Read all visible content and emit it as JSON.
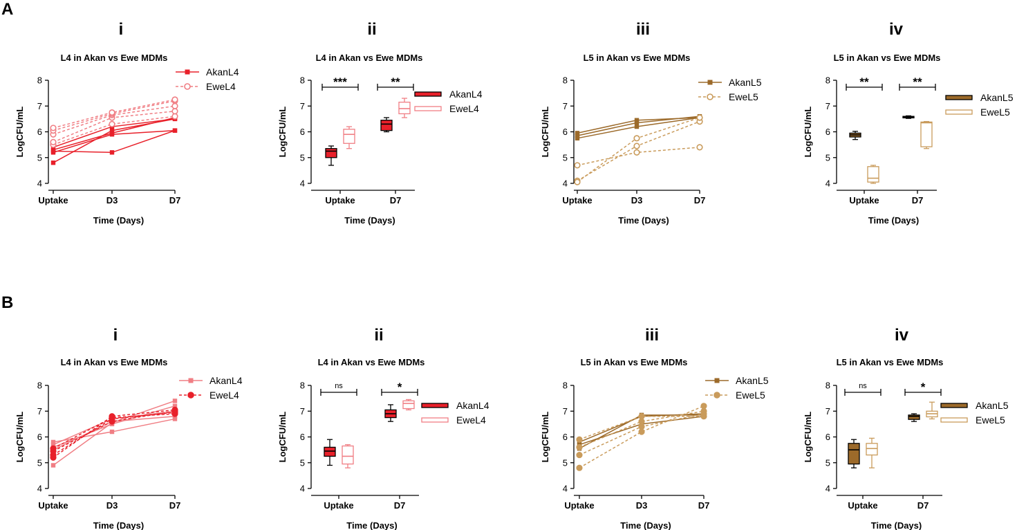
{
  "panel_labels": [
    "A",
    "B"
  ],
  "colors": {
    "L4": "#e8202a",
    "L4_light": "#f07e84",
    "L5": "#9c6a2a",
    "L5_light": "#c99b5b"
  },
  "chart_data": [
    {
      "id": "A-i",
      "panel": "A",
      "sub_label": "i",
      "type": "line",
      "title": "L4 in Akan vs Ewe MDMs",
      "xlabel": "Time (Days)",
      "ylabel": "LogCFU/mL",
      "categories": [
        "Uptake",
        "D3",
        "D7"
      ],
      "ylim": [
        4,
        8
      ],
      "yticks": [
        4,
        5,
        6,
        7,
        8
      ],
      "legend": [
        "AkanL4",
        "EweL4"
      ],
      "legend_position": "top-right",
      "series": [
        {
          "name": "AkanL4",
          "values": [
            4.8,
            6.05,
            6.5
          ]
        },
        {
          "name": "AkanL4",
          "values": [
            5.25,
            5.2,
            6.05
          ]
        },
        {
          "name": "AkanL4",
          "values": [
            5.2,
            5.9,
            6.05
          ]
        },
        {
          "name": "AkanL4",
          "values": [
            5.3,
            5.95,
            6.55
          ]
        },
        {
          "name": "AkanL4",
          "values": [
            5.4,
            6.2,
            6.5
          ]
        },
        {
          "name": "EweL4",
          "values": [
            5.5,
            6.3,
            6.6
          ]
        },
        {
          "name": "EweL4",
          "values": [
            5.6,
            6.55,
            6.8
          ]
        },
        {
          "name": "EweL4",
          "values": [
            5.9,
            6.65,
            7.0
          ]
        },
        {
          "name": "EweL4",
          "values": [
            6.05,
            6.7,
            7.2
          ]
        },
        {
          "name": "EweL4",
          "values": [
            6.15,
            6.75,
            7.25
          ]
        }
      ]
    },
    {
      "id": "A-ii",
      "panel": "A",
      "sub_label": "ii",
      "type": "box",
      "title": "L4 in Akan vs Ewe MDMs",
      "xlabel": "Time (Days)",
      "ylabel": "LogCFU/mL",
      "categories": [
        "Uptake",
        "D7"
      ],
      "ylim": [
        4,
        8
      ],
      "yticks": [
        4,
        5,
        6,
        7,
        8
      ],
      "legend": [
        "AkanL4",
        "EweL4"
      ],
      "legend_position": "right",
      "series": [
        {
          "name": "AkanL4",
          "fill": true,
          "boxes": [
            {
              "min": 4.7,
              "q1": 5.0,
              "median": 5.25,
              "q3": 5.35,
              "max": 5.45
            },
            {
              "min": 6.0,
              "q1": 6.05,
              "median": 6.3,
              "q3": 6.45,
              "max": 6.55
            }
          ]
        },
        {
          "name": "EweL4",
          "fill": false,
          "boxes": [
            {
              "min": 5.35,
              "q1": 5.55,
              "median": 5.9,
              "q3": 6.1,
              "max": 6.2
            },
            {
              "min": 6.55,
              "q1": 6.7,
              "median": 6.9,
              "q3": 7.15,
              "max": 7.3
            }
          ]
        }
      ],
      "significance": [
        "***",
        "**"
      ]
    },
    {
      "id": "A-iii",
      "panel": "A",
      "sub_label": "iii",
      "type": "line",
      "title": "L5 in Akan vs Ewe MDMs",
      "xlabel": "Time (Days)",
      "ylabel": "LogCFU/mL",
      "categories": [
        "Uptake",
        "D3",
        "D7"
      ],
      "ylim": [
        4,
        8
      ],
      "yticks": [
        4,
        5,
        6,
        7,
        8
      ],
      "legend": [
        "AkanL5",
        "EweL5"
      ],
      "legend_position": "top-right",
      "series": [
        {
          "name": "AkanL5",
          "values": [
            5.75,
            6.2,
            6.55
          ]
        },
        {
          "name": "AkanL5",
          "values": [
            5.85,
            6.35,
            6.6
          ]
        },
        {
          "name": "AkanL5",
          "values": [
            5.95,
            6.45,
            6.55
          ]
        },
        {
          "name": "EweL5",
          "values": [
            4.7,
            5.2,
            5.4
          ]
        },
        {
          "name": "EweL5",
          "values": [
            4.1,
            5.45,
            6.4
          ]
        },
        {
          "name": "EweL5",
          "values": [
            4.05,
            5.75,
            6.55
          ]
        }
      ]
    },
    {
      "id": "A-iv",
      "panel": "A",
      "sub_label": "iv",
      "type": "box",
      "title": "L5 in Akan vs Ewe MDMs",
      "xlabel": "Time (Days)",
      "ylabel": "LogCFU/mL",
      "categories": [
        "Uptake",
        "D7"
      ],
      "ylim": [
        4,
        8
      ],
      "yticks": [
        4,
        5,
        6,
        7,
        8
      ],
      "legend": [
        "AkanL5",
        "EweL5"
      ],
      "legend_position": "right",
      "series": [
        {
          "name": "AkanL5",
          "fill": true,
          "boxes": [
            {
              "min": 5.7,
              "q1": 5.8,
              "median": 5.88,
              "q3": 5.95,
              "max": 6.02
            },
            {
              "min": 6.52,
              "q1": 6.54,
              "median": 6.57,
              "q3": 6.6,
              "max": 6.62
            }
          ]
        },
        {
          "name": "EweL5",
          "fill": false,
          "boxes": [
            {
              "min": 4.0,
              "q1": 4.05,
              "median": 4.2,
              "q3": 4.65,
              "max": 4.7
            },
            {
              "min": 5.35,
              "q1": 5.42,
              "median": 6.35,
              "q3": 6.38,
              "max": 6.4
            }
          ]
        }
      ],
      "significance": [
        "**",
        "**"
      ]
    },
    {
      "id": "B-i",
      "panel": "B",
      "sub_label": "i",
      "type": "line",
      "title": "L4 in Akan vs Ewe MDMs",
      "xlabel": "Time (Days)",
      "ylabel": "LogCFU/mL",
      "categories": [
        "Uptake",
        "D3",
        "D7"
      ],
      "ylim": [
        4,
        8
      ],
      "yticks": [
        4,
        5,
        6,
        7,
        8
      ],
      "legend": [
        "AkanL4",
        "EweL4"
      ],
      "legend_position": "top-right",
      "series": [
        {
          "name": "AkanL4",
          "values": [
            4.9,
            6.55,
            7.4
          ]
        },
        {
          "name": "AkanL4",
          "values": [
            5.8,
            6.2,
            6.7
          ]
        },
        {
          "name": "AkanL4",
          "values": [
            5.6,
            6.5,
            7.2
          ]
        },
        {
          "name": "AkanL4",
          "values": [
            5.5,
            6.6,
            6.8
          ]
        },
        {
          "name": "AkanL4",
          "values": [
            5.7,
            6.7,
            7.0
          ]
        },
        {
          "name": "EweL4",
          "values": [
            5.2,
            6.8,
            7.05
          ]
        },
        {
          "name": "EweL4",
          "values": [
            5.3,
            6.7,
            6.95
          ]
        },
        {
          "name": "EweL4",
          "values": [
            5.45,
            6.6,
            7.0
          ]
        },
        {
          "name": "EweL4",
          "values": [
            5.55,
            6.75,
            6.9
          ]
        }
      ]
    },
    {
      "id": "B-ii",
      "panel": "B",
      "sub_label": "ii",
      "type": "box",
      "title": "L4 in Akan vs Ewe MDMs",
      "xlabel": "Time (Days)",
      "ylabel": "LogCFU/mL",
      "categories": [
        "Uptake",
        "D7"
      ],
      "ylim": [
        4,
        8
      ],
      "yticks": [
        4,
        5,
        6,
        7,
        8
      ],
      "legend": [
        "AkanL4",
        "EweL4"
      ],
      "legend_position": "right",
      "series": [
        {
          "name": "AkanL4",
          "fill": true,
          "boxes": [
            {
              "min": 4.9,
              "q1": 5.25,
              "median": 5.45,
              "q3": 5.6,
              "max": 5.9
            },
            {
              "min": 6.6,
              "q1": 6.75,
              "median": 6.9,
              "q3": 7.05,
              "max": 7.25
            }
          ]
        },
        {
          "name": "EweL4",
          "fill": false,
          "boxes": [
            {
              "min": 4.8,
              "q1": 4.95,
              "median": 5.25,
              "q3": 5.65,
              "max": 5.7
            },
            {
              "min": 7.05,
              "q1": 7.1,
              "median": 7.3,
              "q3": 7.4,
              "max": 7.45
            }
          ]
        }
      ],
      "significance": [
        "ns",
        "*"
      ]
    },
    {
      "id": "B-iii",
      "panel": "B",
      "sub_label": "iii",
      "type": "line",
      "title": "L5 in Akan vs Ewe MDMs",
      "xlabel": "Time (Days)",
      "ylabel": "LogCFU/mL",
      "categories": [
        "Uptake",
        "D3",
        "D7"
      ],
      "ylim": [
        4,
        8
      ],
      "yticks": [
        4,
        5,
        6,
        7,
        8
      ],
      "legend": [
        "AkanL5",
        "EweL5"
      ],
      "legend_position": "top-right",
      "series": [
        {
          "name": "AkanL5",
          "values": [
            5.55,
            6.85,
            6.85
          ]
        },
        {
          "name": "AkanL5",
          "values": [
            5.7,
            6.5,
            6.8
          ]
        },
        {
          "name": "AkanL5",
          "values": [
            5.8,
            6.8,
            6.9
          ]
        },
        {
          "name": "EweL5",
          "values": [
            4.8,
            6.2,
            7.2
          ]
        },
        {
          "name": "EweL5",
          "values": [
            5.3,
            6.4,
            6.9
          ]
        },
        {
          "name": "EweL5",
          "values": [
            5.9,
            6.8,
            6.8
          ]
        },
        {
          "name": "EweL5",
          "values": [
            5.6,
            6.6,
            7.0
          ]
        }
      ]
    },
    {
      "id": "B-iv",
      "panel": "B",
      "sub_label": "iv",
      "type": "box",
      "title": "L5 in Akan vs Ewe MDMs",
      "xlabel": "Time (Days)",
      "ylabel": "LogCFU/mL",
      "categories": [
        "Uptake",
        "D7"
      ],
      "ylim": [
        4,
        8
      ],
      "yticks": [
        4,
        5,
        6,
        7,
        8
      ],
      "legend": [
        "AkanL5",
        "EweL5"
      ],
      "legend_position": "right",
      "series": [
        {
          "name": "AkanL5",
          "fill": true,
          "boxes": [
            {
              "min": 4.8,
              "q1": 4.95,
              "median": 5.5,
              "q3": 5.75,
              "max": 5.9
            },
            {
              "min": 6.6,
              "q1": 6.68,
              "median": 6.8,
              "q3": 6.85,
              "max": 6.9
            }
          ]
        },
        {
          "name": "EweL5",
          "fill": false,
          "boxes": [
            {
              "min": 4.8,
              "q1": 5.3,
              "median": 5.55,
              "q3": 5.75,
              "max": 5.95
            },
            {
              "min": 6.7,
              "q1": 6.78,
              "median": 6.9,
              "q3": 7.0,
              "max": 7.35
            }
          ]
        }
      ],
      "significance": [
        "ns",
        "*"
      ]
    }
  ]
}
